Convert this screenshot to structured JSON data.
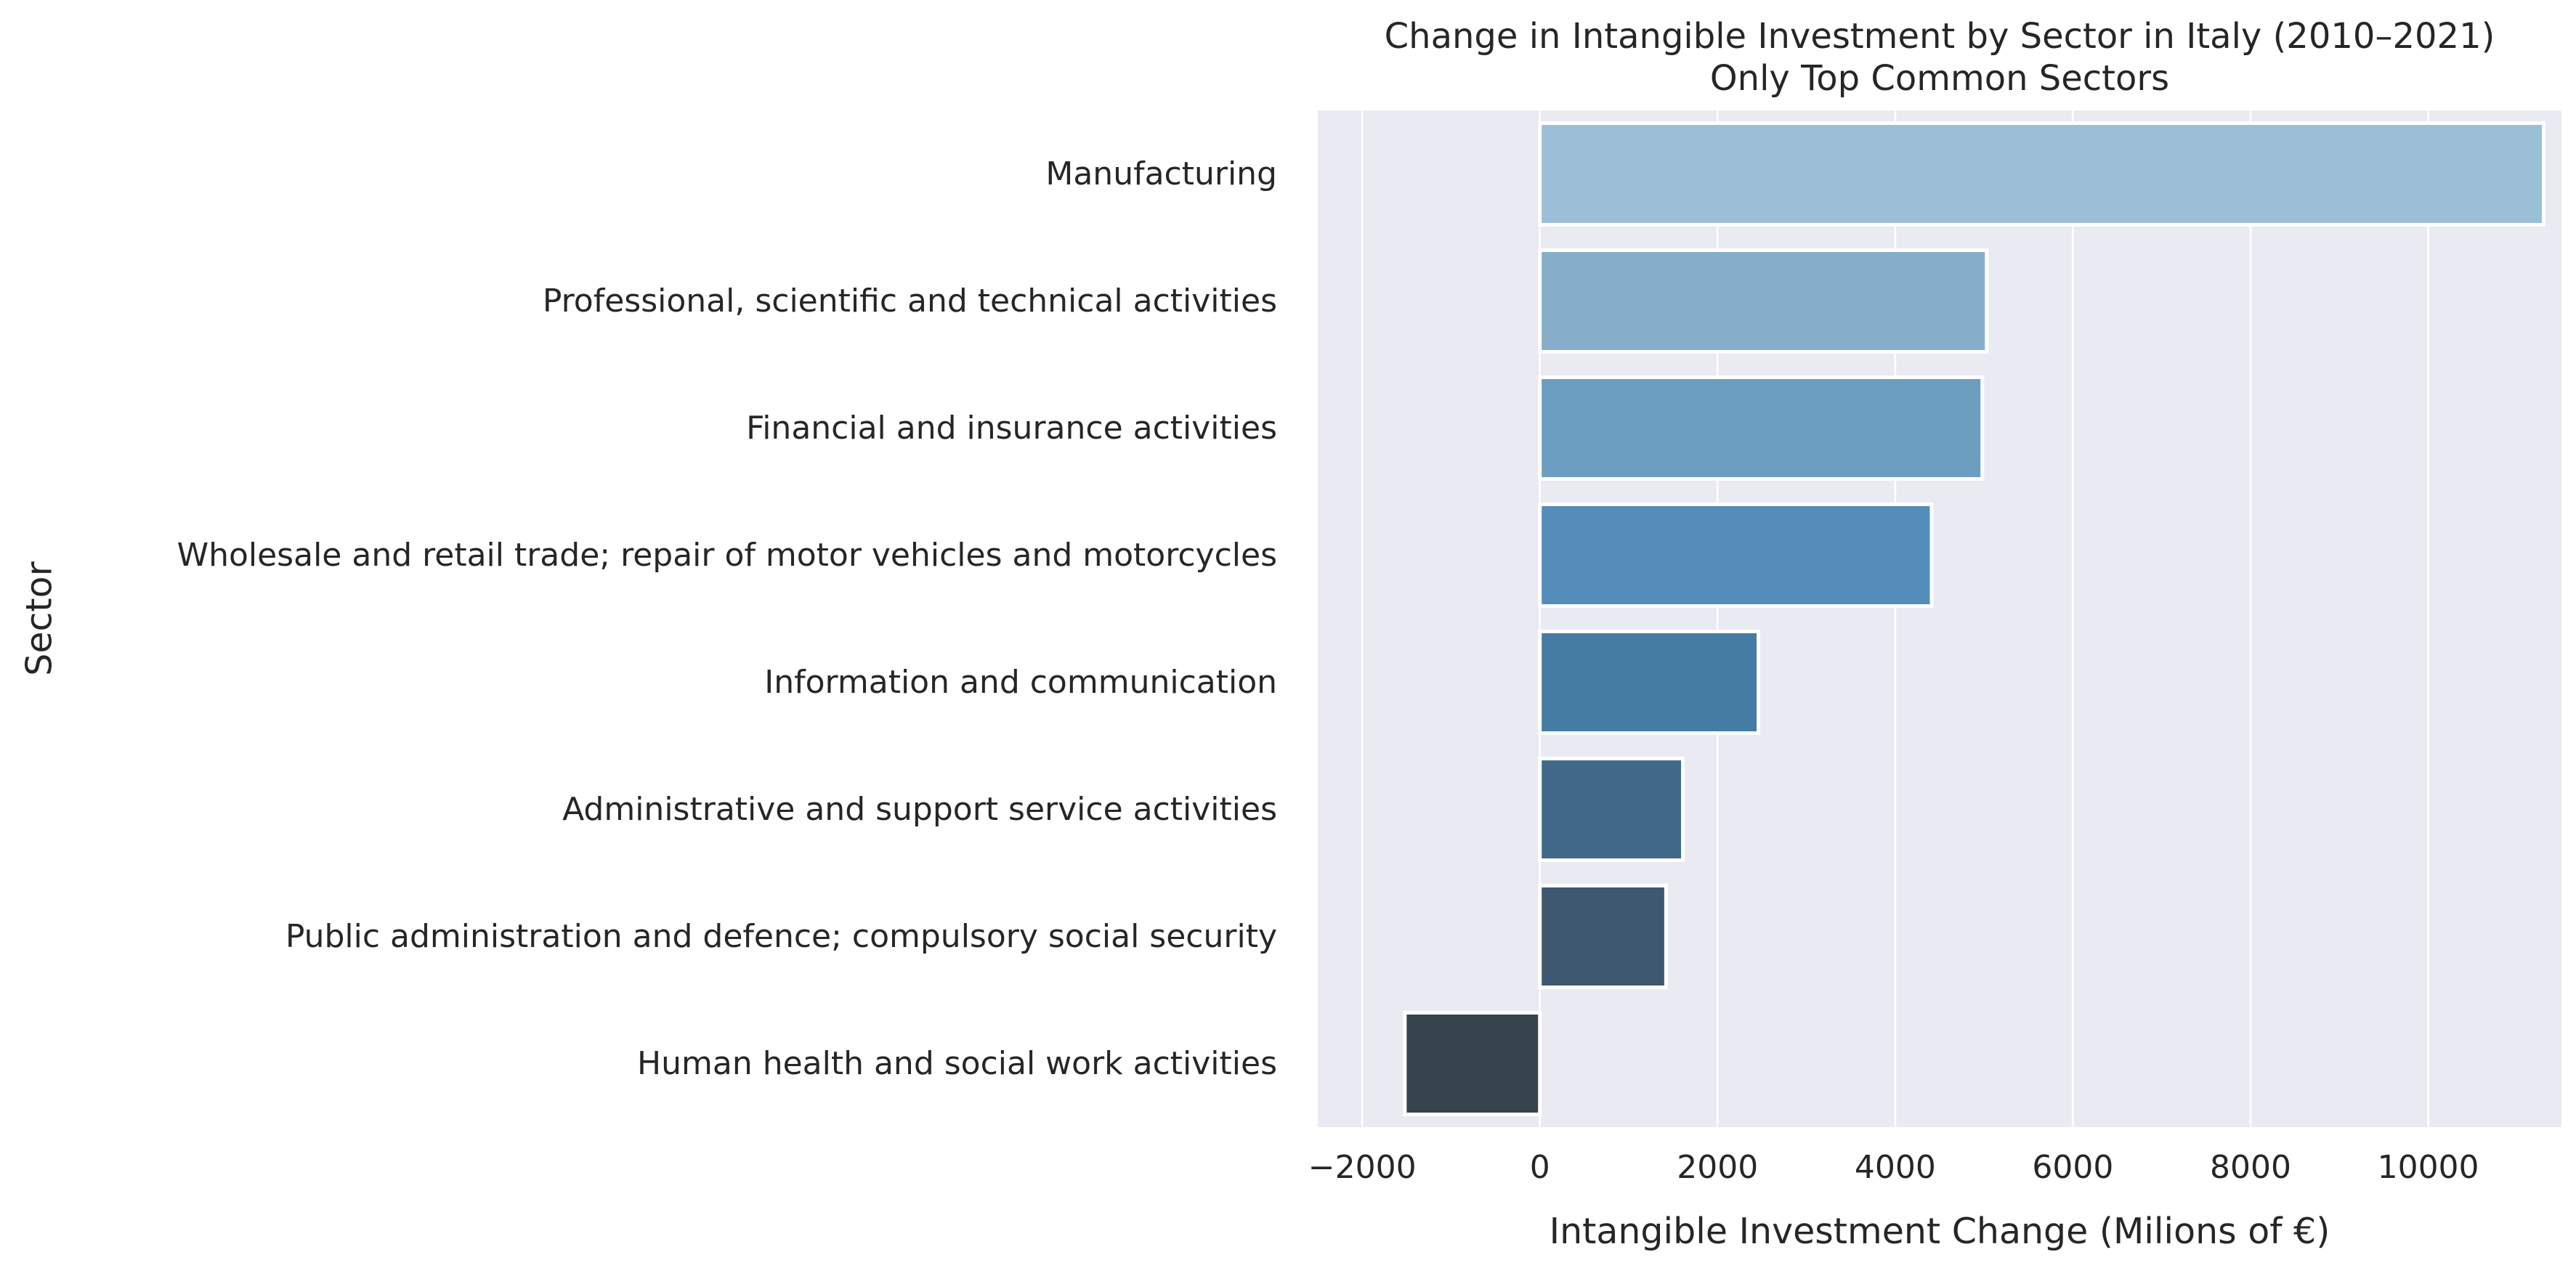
{
  "chart_data": {
    "type": "bar",
    "orientation": "horizontal",
    "title": "Change in Intangible Investment by Sector in Italy (2010–2021)",
    "subtitle": "Only Top Common Sectors",
    "xlabel": "Intangible Investment Change (Milions of €)",
    "ylabel": "Sector",
    "xlim": [
      -2500,
      11500
    ],
    "xticks": [
      -2000,
      0,
      2000,
      4000,
      6000,
      8000,
      10000
    ],
    "xtick_labels": [
      "−2000",
      "0",
      "2000",
      "4000",
      "6000",
      "8000",
      "10000"
    ],
    "grid": true,
    "background": "#eaeaf2",
    "categories": [
      "Manufacturing",
      "Professional, scientific and technical activities",
      "Financial and insurance activities",
      "Wholesale and retail trade; repair of motor vehicles and motorcycles",
      "Information and communication",
      "Administrative and support service activities",
      "Public administration and defence; compulsory social security",
      "Human health and social work activities"
    ],
    "values": [
      11300,
      5030,
      4980,
      4410,
      2460,
      1610,
      1420,
      -1520
    ],
    "colors": [
      "#9bbfd6",
      "#86aecb",
      "#6c9ec0",
      "#548dba",
      "#447ca3",
      "#416a8a",
      "#3d5870",
      "#37444e"
    ]
  }
}
